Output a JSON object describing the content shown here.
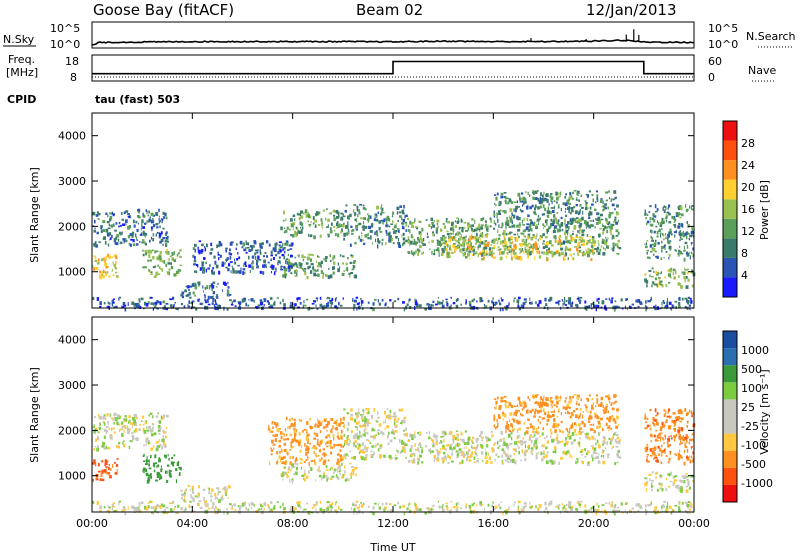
{
  "header": {
    "station": "Goose Bay (fitACF)",
    "beam": "Beam 02",
    "date": "12/Jan/2013"
  },
  "noise_panel": {
    "left_label": "N.Sky",
    "right_label": "N.Search",
    "left_ticks": [
      "10^5",
      "10^0"
    ],
    "right_ticks": [
      "10^5",
      "10^0"
    ]
  },
  "freq_panel": {
    "left_label_line1": "Freq.",
    "left_label_line2": "[MHz]",
    "left_ticks": [
      "18",
      "8"
    ],
    "right_label": "Nave",
    "right_ticks": [
      "60",
      "0"
    ],
    "cpid_label": "CPID",
    "cpid_value": "tau (fast) 503"
  },
  "colors": {
    "power_scale": [
      "#1a1aff",
      "#2a55b5",
      "#3a7a6a",
      "#5aa05a",
      "#9ac050",
      "#ffd030",
      "#ff9020",
      "#ff5010",
      "#ee1010"
    ],
    "velocity_scale": [
      "#ee1010",
      "#ff5010",
      "#ff9020",
      "#ffc840",
      "#c8c8c0",
      "#c8c8c0",
      "#7ccc40",
      "#3a9a3a",
      "#2a70b0",
      "#1a4fa0"
    ]
  },
  "chart_data": [
    {
      "type": "heatmap",
      "panel": "power",
      "ylabel": "Slant Range [km]",
      "ylim": [
        200,
        4500
      ],
      "yticks": [
        "1000",
        "2000",
        "3000",
        "4000"
      ],
      "xlabel": "Time UT",
      "xticks": [
        "00:00",
        "04:00",
        "08:00",
        "12:00",
        "16:00",
        "20:00",
        "00:00"
      ],
      "colorbar_label": "Power [dB]",
      "colorbar_ticks": [
        "4",
        "8",
        "12",
        "16",
        "20",
        "24",
        "28"
      ],
      "patches": [
        {
          "t0": 0.0,
          "t1": 3.0,
          "r0": 1600,
          "r1": 2400,
          "level": 8
        },
        {
          "t0": 0.0,
          "t1": 1.0,
          "r0": 900,
          "r1": 1400,
          "level": 20
        },
        {
          "t0": 2.0,
          "t1": 3.5,
          "r0": 900,
          "r1": 1500,
          "level": 14
        },
        {
          "t0": 3.5,
          "t1": 5.5,
          "r0": 450,
          "r1": 800,
          "level": 8
        },
        {
          "t0": 4.0,
          "t1": 8.0,
          "r0": 1000,
          "r1": 1700,
          "level": 6
        },
        {
          "t0": 7.5,
          "t1": 10.0,
          "r0": 1800,
          "r1": 2400,
          "level": 12
        },
        {
          "t0": 7.5,
          "t1": 10.5,
          "r0": 900,
          "r1": 1400,
          "level": 12
        },
        {
          "t0": 10.0,
          "t1": 12.5,
          "r0": 1600,
          "r1": 2500,
          "level": 10
        },
        {
          "t0": 12.5,
          "t1": 21.0,
          "r0": 1400,
          "r1": 2200,
          "level": 12
        },
        {
          "t0": 14.0,
          "t1": 20.0,
          "r0": 1300,
          "r1": 1800,
          "level": 18
        },
        {
          "t0": 16.0,
          "t1": 21.0,
          "r0": 2000,
          "r1": 2800,
          "level": 10
        },
        {
          "t0": 22.0,
          "t1": 24.0,
          "r0": 700,
          "r1": 1100,
          "level": 14
        },
        {
          "t0": 22.0,
          "t1": 24.0,
          "r0": 1300,
          "r1": 2500,
          "level": 10
        },
        {
          "t0": 0.0,
          "t1": 24.0,
          "r0": 200,
          "r1": 450,
          "level": 6
        }
      ]
    },
    {
      "type": "heatmap",
      "panel": "velocity",
      "ylabel": "Slant Range [km]",
      "ylim": [
        200,
        4500
      ],
      "yticks": [
        "1000",
        "2000",
        "3000",
        "4000"
      ],
      "xlabel": "Time UT",
      "xticks": [
        "00:00",
        "04:00",
        "08:00",
        "12:00",
        "16:00",
        "20:00",
        "00:00"
      ],
      "colorbar_label": "Velocity [m s⁻¹]",
      "colorbar_ticks": [
        "1000",
        "500",
        "100",
        "25",
        "-25",
        "-100",
        "-500",
        "-1000"
      ],
      "patches": [
        {
          "t0": 0.0,
          "t1": 3.0,
          "r0": 1600,
          "r1": 2400,
          "velocity": 0
        },
        {
          "t0": 0.0,
          "t1": 1.0,
          "r0": 900,
          "r1": 1400,
          "velocity": -300
        },
        {
          "t0": 2.0,
          "t1": 3.5,
          "r0": 900,
          "r1": 1500,
          "velocity": 200
        },
        {
          "t0": 3.5,
          "t1": 5.5,
          "r0": 450,
          "r1": 800,
          "velocity": 0
        },
        {
          "t0": 7.0,
          "t1": 10.0,
          "r0": 1300,
          "r1": 2300,
          "velocity": -150
        },
        {
          "t0": 7.5,
          "t1": 10.5,
          "r0": 900,
          "r1": 1300,
          "velocity": 0
        },
        {
          "t0": 10.0,
          "t1": 12.5,
          "r0": 1400,
          "r1": 2500,
          "velocity": 0
        },
        {
          "t0": 12.5,
          "t1": 21.0,
          "r0": 1300,
          "r1": 2000,
          "velocity": 0
        },
        {
          "t0": 16.0,
          "t1": 21.0,
          "r0": 2000,
          "r1": 2800,
          "velocity": -150
        },
        {
          "t0": 22.0,
          "t1": 24.0,
          "r0": 700,
          "r1": 1100,
          "velocity": 0
        },
        {
          "t0": 22.0,
          "t1": 24.0,
          "r0": 1300,
          "r1": 2500,
          "velocity": -200
        },
        {
          "t0": 0.0,
          "t1": 24.0,
          "r0": 200,
          "r1": 450,
          "velocity": 0
        }
      ]
    },
    {
      "type": "line",
      "panel": "noise",
      "x": [
        0,
        0.3,
        2,
        4,
        6,
        8,
        10,
        12,
        14,
        16,
        18,
        20,
        21,
        21.5,
        22,
        24
      ],
      "y_log10": [
        0.2,
        0.8,
        0.9,
        1.0,
        1.0,
        1.0,
        1.0,
        0.95,
        1.1,
        1.0,
        1.0,
        1.1,
        1.3,
        1.2,
        0.9,
        0.8
      ]
    },
    {
      "type": "line",
      "panel": "frequency",
      "x": [
        0,
        12,
        12,
        22,
        22,
        24
      ],
      "y": [
        10.8,
        10.8,
        15.5,
        15.5,
        10.8,
        10.8
      ]
    }
  ]
}
